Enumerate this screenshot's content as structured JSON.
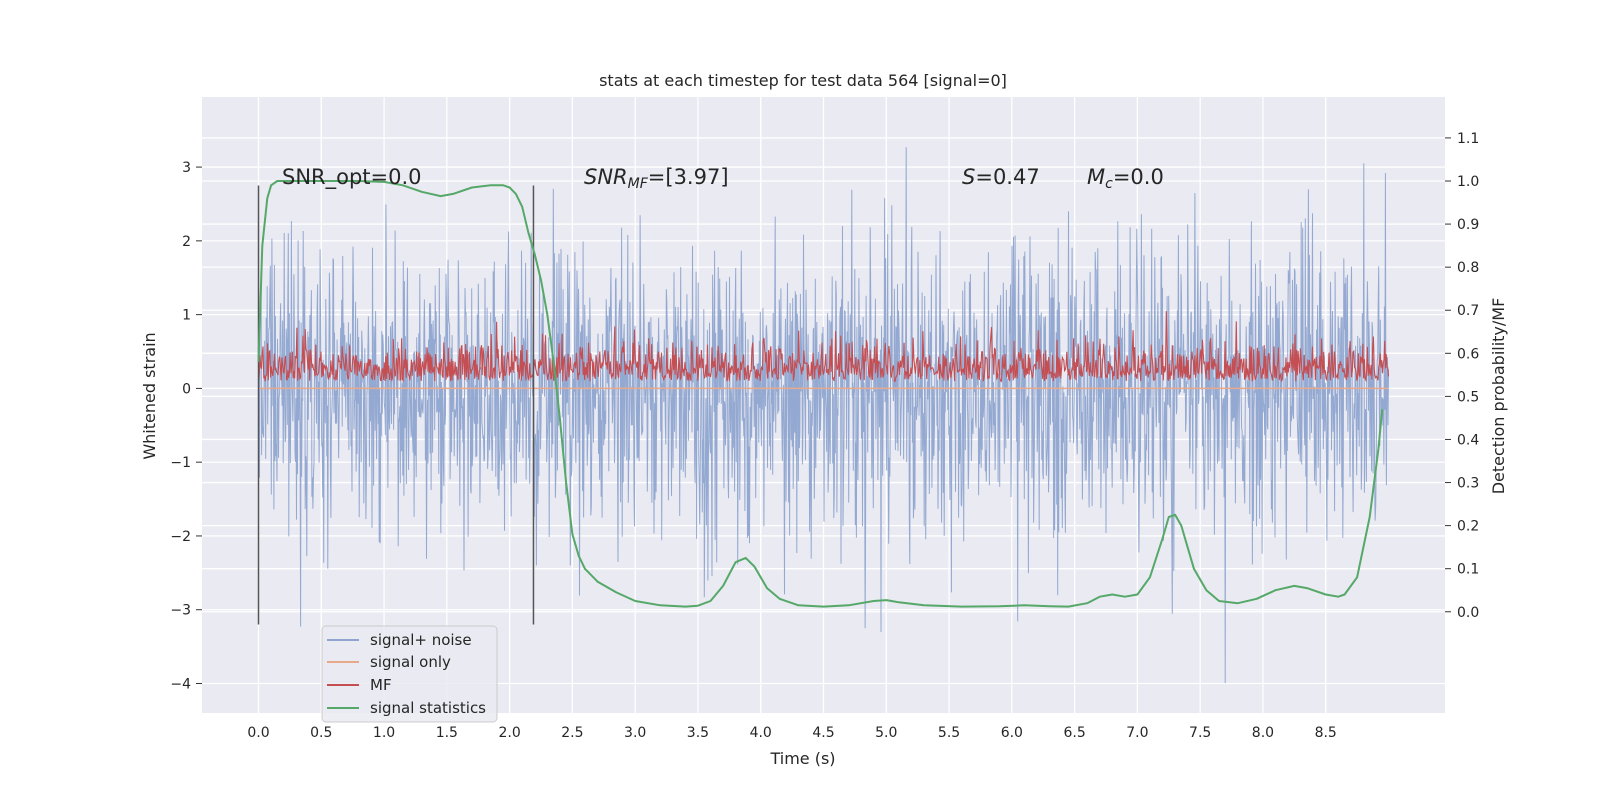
{
  "chart_data": {
    "type": "line",
    "title": "stats at each timestep for test data 564 [signal=0]",
    "xlabel": "Time (s)",
    "ylabel": "Whitened strain",
    "y2label": "Detection probability/MF",
    "xlim": [
      -0.45,
      9.45
    ],
    "ylim": [
      -4.4,
      3.95
    ],
    "y2lim": [
      -0.235,
      1.195
    ],
    "xticks": [
      "0.0",
      "0.5",
      "1.0",
      "1.5",
      "2.0",
      "2.5",
      "3.0",
      "3.5",
      "4.0",
      "4.5",
      "5.0",
      "5.5",
      "6.0",
      "6.5",
      "7.0",
      "7.5",
      "8.0",
      "8.5"
    ],
    "yticks": [
      "3",
      "2",
      "1",
      "0",
      "−1",
      "−2",
      "−3",
      "−4"
    ],
    "y2ticks": [
      "1.1",
      "1.0",
      "0.9",
      "0.8",
      "0.7",
      "0.6",
      "0.5",
      "0.4",
      "0.3",
      "0.2",
      "0.1",
      "0.0"
    ],
    "grid": true,
    "legend_position": "lower-left",
    "annotations": {
      "snr_opt": "SNR_opt=0.0",
      "snr_mf_main": "SNR",
      "snr_mf_sub": "MF",
      "snr_mf_tail": "=[3.97]",
      "s_main": "S",
      "s_tail": "=0.47",
      "mc_main": "M",
      "mc_sub": "c",
      "mc_tail": "=0.0"
    },
    "vlines": [
      {
        "x": 0.0,
        "y_from": -3.2,
        "y_to": 2.75
      },
      {
        "x": 2.19,
        "y_from": -3.2,
        "y_to": 2.75
      }
    ],
    "series": [
      {
        "name": "signal+ noise",
        "color": "#8fa5cf",
        "style": "noise",
        "x_range": [
          0.0,
          9.0
        ],
        "envelope": [
          -4.0,
          3.55
        ],
        "note_values": "dense noise band, typical range -1.5 to 1.5"
      },
      {
        "name": "signal only",
        "color": "#e8a98b",
        "style": "flat",
        "x_range": [
          0.0,
          9.0
        ],
        "value": 0.0
      },
      {
        "name": "MF",
        "color": "#c44e52",
        "style": "mf",
        "x_range": [
          0.0,
          9.0
        ],
        "axis": "right",
        "base": 0.535,
        "range": [
          0.535,
          0.7
        ]
      },
      {
        "name": "signal statistics",
        "color": "#55a868",
        "style": "line",
        "axis": "right",
        "x": [
          0.0,
          0.03,
          0.07,
          0.1,
          0.15,
          0.2,
          0.3,
          0.5,
          0.8,
          1.0,
          1.15,
          1.3,
          1.45,
          1.55,
          1.7,
          1.85,
          1.95,
          2.0,
          2.05,
          2.1,
          2.15,
          2.2,
          2.25,
          2.3,
          2.35,
          2.4,
          2.45,
          2.5,
          2.55,
          2.6,
          2.7,
          2.85,
          3.0,
          3.2,
          3.4,
          3.5,
          3.6,
          3.7,
          3.8,
          3.88,
          3.95,
          4.05,
          4.15,
          4.3,
          4.5,
          4.7,
          4.9,
          5.0,
          5.1,
          5.3,
          5.6,
          5.9,
          6.1,
          6.3,
          6.45,
          6.6,
          6.7,
          6.8,
          6.9,
          7.0,
          7.1,
          7.2,
          7.25,
          7.3,
          7.35,
          7.4,
          7.45,
          7.55,
          7.65,
          7.8,
          7.95,
          8.1,
          8.25,
          8.35,
          8.5,
          8.6,
          8.65,
          8.75,
          8.85,
          8.92,
          8.95
        ],
        "values": [
          0.58,
          0.85,
          0.96,
          0.99,
          1.0,
          1.0,
          1.0,
          1.0,
          1.0,
          0.998,
          0.99,
          0.975,
          0.965,
          0.97,
          0.985,
          0.99,
          0.99,
          0.985,
          0.97,
          0.94,
          0.88,
          0.83,
          0.77,
          0.69,
          0.58,
          0.45,
          0.3,
          0.18,
          0.13,
          0.1,
          0.07,
          0.045,
          0.025,
          0.015,
          0.012,
          0.014,
          0.025,
          0.06,
          0.115,
          0.125,
          0.105,
          0.055,
          0.03,
          0.015,
          0.012,
          0.015,
          0.025,
          0.027,
          0.022,
          0.015,
          0.012,
          0.013,
          0.015,
          0.013,
          0.012,
          0.02,
          0.035,
          0.04,
          0.035,
          0.04,
          0.08,
          0.17,
          0.22,
          0.225,
          0.2,
          0.15,
          0.1,
          0.05,
          0.025,
          0.02,
          0.03,
          0.05,
          0.06,
          0.055,
          0.04,
          0.035,
          0.04,
          0.08,
          0.22,
          0.38,
          0.47
        ]
      }
    ]
  }
}
